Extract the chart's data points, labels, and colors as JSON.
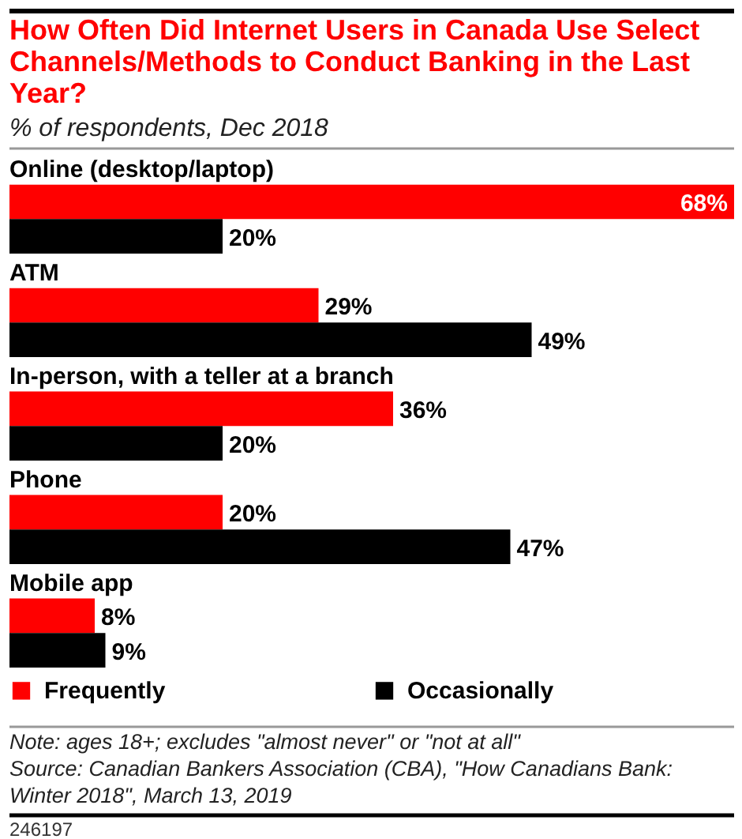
{
  "chart_data": {
    "type": "bar",
    "orientation": "horizontal",
    "title": "How Often Did Internet Users in Canada Use Select Channels/Methods to Conduct Banking in the Last Year?",
    "subtitle": "% of respondents, Dec 2018",
    "categories": [
      "Online (desktop/laptop)",
      "ATM",
      "In-person, with a teller at a branch",
      "Phone",
      "Mobile app"
    ],
    "series": [
      {
        "name": "Frequently",
        "color": "#ff0000",
        "values": [
          68,
          29,
          36,
          20,
          8
        ],
        "value_labels": [
          "68%",
          "29%",
          "36%",
          "20%",
          "8%"
        ]
      },
      {
        "name": "Occasionally",
        "color": "#000000",
        "values": [
          20,
          49,
          20,
          47,
          9
        ],
        "value_labels": [
          "20%",
          "49%",
          "20%",
          "47%",
          "9%"
        ]
      }
    ],
    "legend": "bottom",
    "annotations": [
      "Note: ages 18+; excludes \"almost never\" or \"not at all\"",
      "Source: Canadian Bankers Association (CBA), \"How Canadians Bank: Winter 2018\", March 13, 2019",
      "246197"
    ]
  }
}
